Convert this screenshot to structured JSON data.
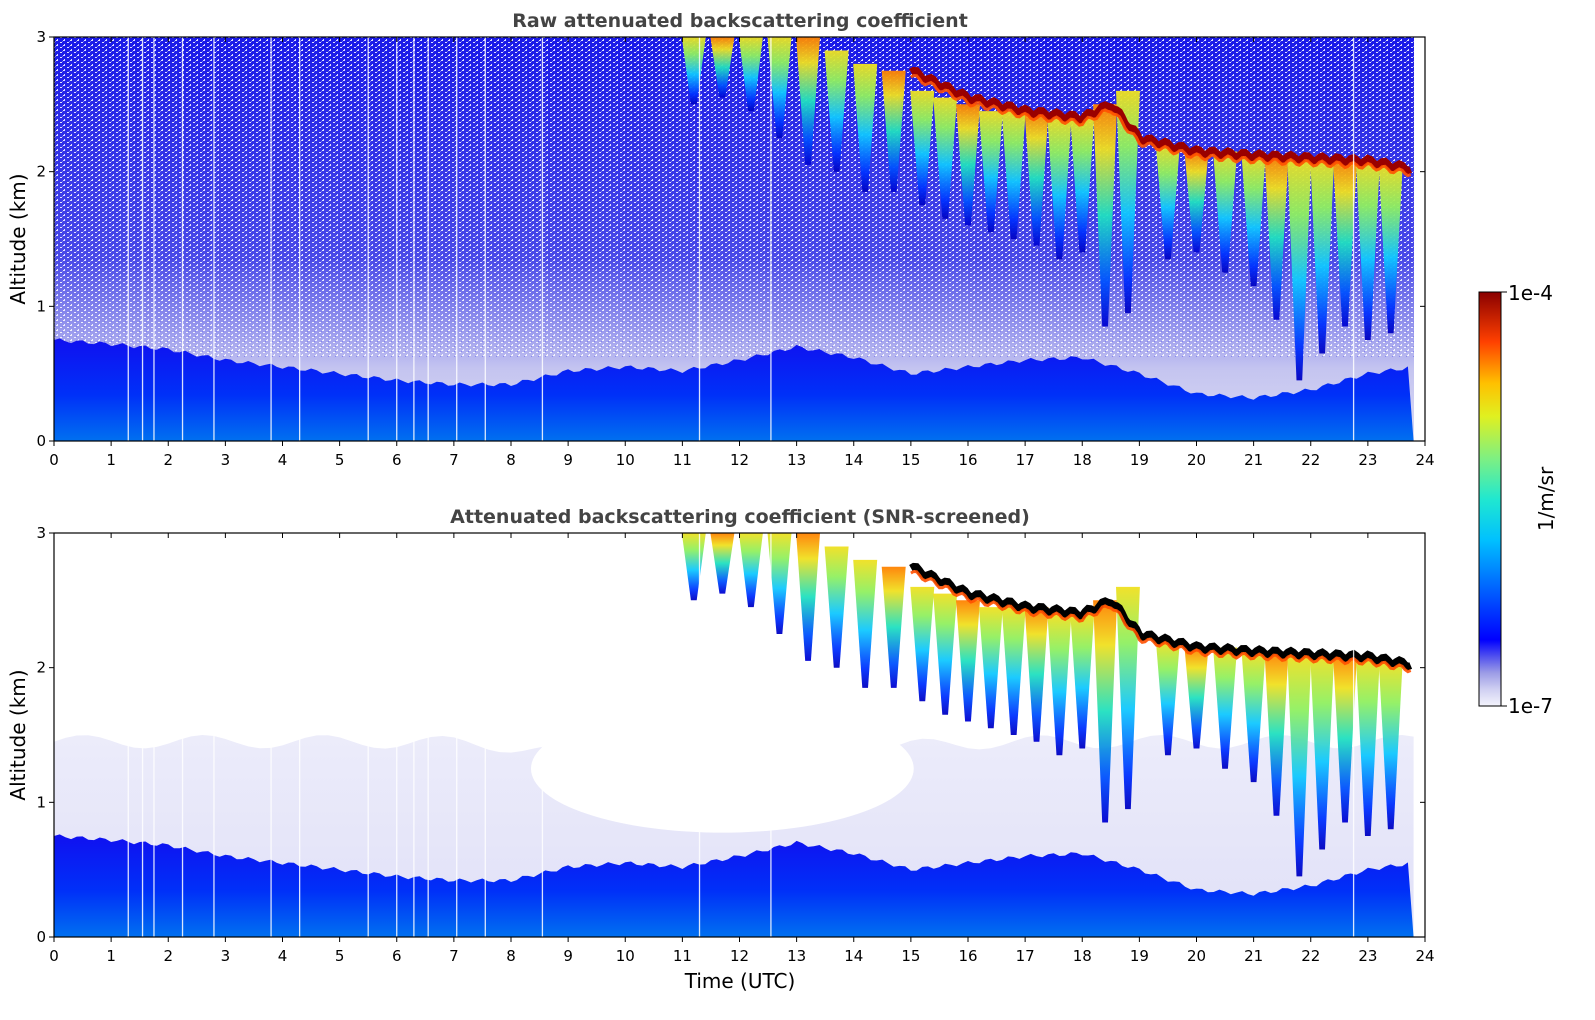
{
  "chart_data": [
    {
      "type": "heatmap",
      "title": "Raw attenuated backscattering coefficient",
      "xlabel": "",
      "ylabel": "Altitude (km)",
      "xlim": [
        0,
        24
      ],
      "ylim": [
        0,
        3
      ],
      "xticks": [
        "0",
        "1",
        "2",
        "3",
        "4",
        "5",
        "6",
        "7",
        "8",
        "9",
        "10",
        "11",
        "12",
        "13",
        "14",
        "15",
        "16",
        "17",
        "18",
        "19",
        "20",
        "21",
        "22",
        "23",
        "24"
      ],
      "yticks": [
        "0",
        "1",
        "2",
        "3"
      ],
      "grid": false,
      "aerosol_layer_top_km": [
        [
          0,
          0.75
        ],
        [
          1,
          0.72
        ],
        [
          2,
          0.68
        ],
        [
          3,
          0.6
        ],
        [
          4,
          0.55
        ],
        [
          5,
          0.5
        ],
        [
          6,
          0.45
        ],
        [
          7,
          0.42
        ],
        [
          8,
          0.42
        ],
        [
          9,
          0.52
        ],
        [
          10,
          0.55
        ],
        [
          11,
          0.52
        ],
        [
          12,
          0.6
        ],
        [
          13,
          0.7
        ],
        [
          14,
          0.62
        ],
        [
          15,
          0.5
        ],
        [
          16,
          0.55
        ],
        [
          17,
          0.6
        ],
        [
          18,
          0.62
        ],
        [
          19,
          0.5
        ],
        [
          20,
          0.35
        ],
        [
          21,
          0.32
        ],
        [
          22,
          0.38
        ],
        [
          23,
          0.5
        ],
        [
          23.8,
          0.55
        ]
      ],
      "cloud_layer_km": [
        [
          15.0,
          2.75
        ],
        [
          16,
          2.55
        ],
        [
          17,
          2.45
        ],
        [
          18,
          2.4
        ],
        [
          18.5,
          2.5
        ],
        [
          19,
          2.25
        ],
        [
          20,
          2.15
        ],
        [
          21,
          2.12
        ],
        [
          22,
          2.1
        ],
        [
          23,
          2.08
        ],
        [
          23.8,
          2.02
        ]
      ],
      "missing_profiles_utc": [
        1.3,
        1.55,
        1.75,
        2.25,
        2.8,
        3.8,
        4.3,
        5.5,
        6.0,
        6.3,
        6.55,
        7.05,
        7.55,
        8.55,
        11.3,
        12.55,
        22.75
      ]
    },
    {
      "type": "heatmap",
      "title": "Attenuated backscattering coefficient (SNR-screened)",
      "xlabel": "Time (UTC)",
      "ylabel": "Altitude (km)",
      "xlim": [
        0,
        24
      ],
      "ylim": [
        0,
        3
      ],
      "xticks": [
        "0",
        "1",
        "2",
        "3",
        "4",
        "5",
        "6",
        "7",
        "8",
        "9",
        "10",
        "11",
        "12",
        "13",
        "14",
        "15",
        "16",
        "17",
        "18",
        "19",
        "20",
        "21",
        "22",
        "23",
        "24"
      ],
      "yticks": [
        "0",
        "1",
        "2",
        "3"
      ],
      "grid": false,
      "aerosol_layer_top_km": [
        [
          0,
          0.75
        ],
        [
          1,
          0.72
        ],
        [
          2,
          0.68
        ],
        [
          3,
          0.6
        ],
        [
          4,
          0.55
        ],
        [
          5,
          0.5
        ],
        [
          6,
          0.45
        ],
        [
          7,
          0.42
        ],
        [
          8,
          0.42
        ],
        [
          9,
          0.52
        ],
        [
          10,
          0.55
        ],
        [
          11,
          0.52
        ],
        [
          12,
          0.6
        ],
        [
          13,
          0.7
        ],
        [
          14,
          0.62
        ],
        [
          15,
          0.5
        ],
        [
          16,
          0.55
        ],
        [
          17,
          0.6
        ],
        [
          18,
          0.62
        ],
        [
          19,
          0.5
        ],
        [
          20,
          0.35
        ],
        [
          21,
          0.32
        ],
        [
          22,
          0.38
        ],
        [
          23,
          0.5
        ],
        [
          23.8,
          0.55
        ]
      ],
      "cloud_layer_km": [
        [
          15.0,
          2.75
        ],
        [
          16,
          2.55
        ],
        [
          17,
          2.45
        ],
        [
          18,
          2.4
        ],
        [
          18.5,
          2.5
        ],
        [
          19,
          2.25
        ],
        [
          20,
          2.15
        ],
        [
          21,
          2.12
        ],
        [
          22,
          2.1
        ],
        [
          23,
          2.08
        ],
        [
          23.8,
          2.02
        ]
      ],
      "missing_profiles_utc": [
        1.3,
        1.55,
        1.75,
        2.25,
        2.8,
        3.8,
        4.3,
        5.5,
        6.0,
        6.3,
        6.55,
        7.05,
        7.55,
        8.55,
        11.3,
        12.55,
        22.75
      ]
    }
  ],
  "colorbar": {
    "label": "1/m/sr",
    "max_label": "1e-4",
    "min_label": "1e-7",
    "scale": "log",
    "range": [
      1e-07,
      0.0001
    ],
    "colors": [
      "#e8e8f8",
      "#c4c4ee",
      "#9c9ce6",
      "#6a6aec",
      "#2a2af0",
      "#0000ff",
      "#0040ff",
      "#0090ff",
      "#00c8ff",
      "#20e0e0",
      "#60f0a0",
      "#a0f060",
      "#e0f020",
      "#ffe000",
      "#ffa000",
      "#ff5000",
      "#e01000",
      "#a00000"
    ]
  }
}
